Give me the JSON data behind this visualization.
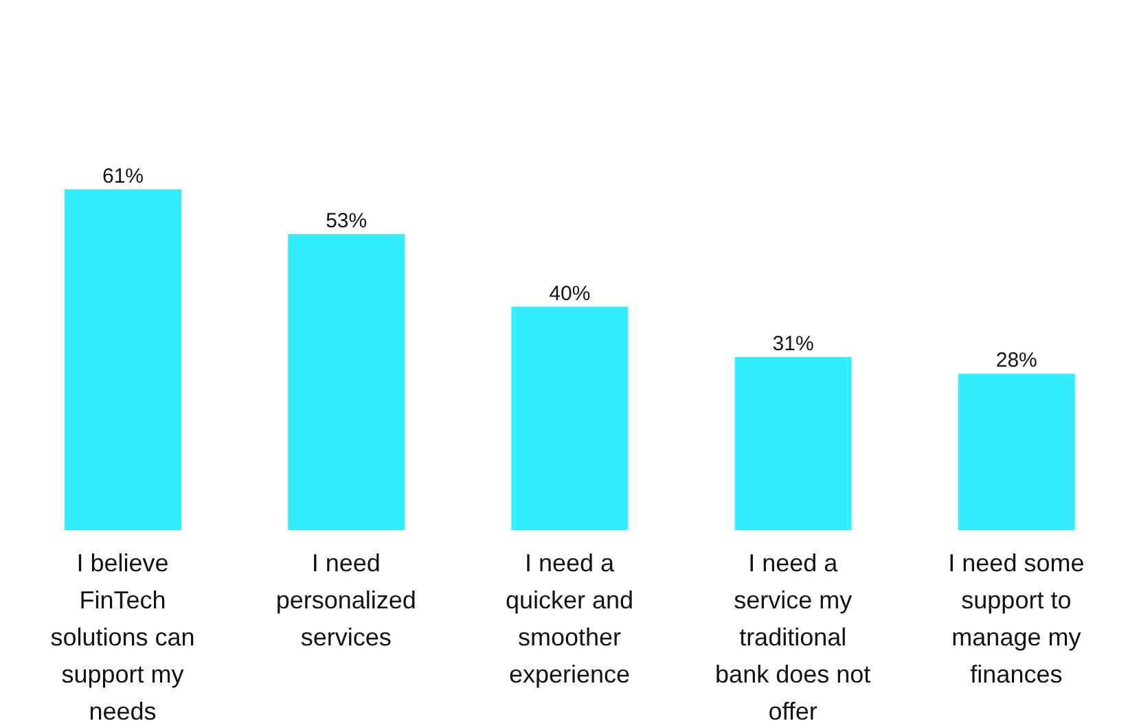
{
  "chart_data": {
    "type": "bar",
    "categories": [
      "I believe FinTech solutions can support my needs",
      "I need personalized services",
      "I need a quicker and smoother experience",
      "I need a service my traditional bank does not offer",
      "I need some support to manage my finances"
    ],
    "values": [
      61,
      53,
      40,
      31,
      28
    ],
    "value_labels": [
      "61%",
      "53%",
      "40%",
      "31%",
      "28%"
    ],
    "color": "#33eeff",
    "tick_labels": "x",
    "grid": false,
    "legend": false
  }
}
